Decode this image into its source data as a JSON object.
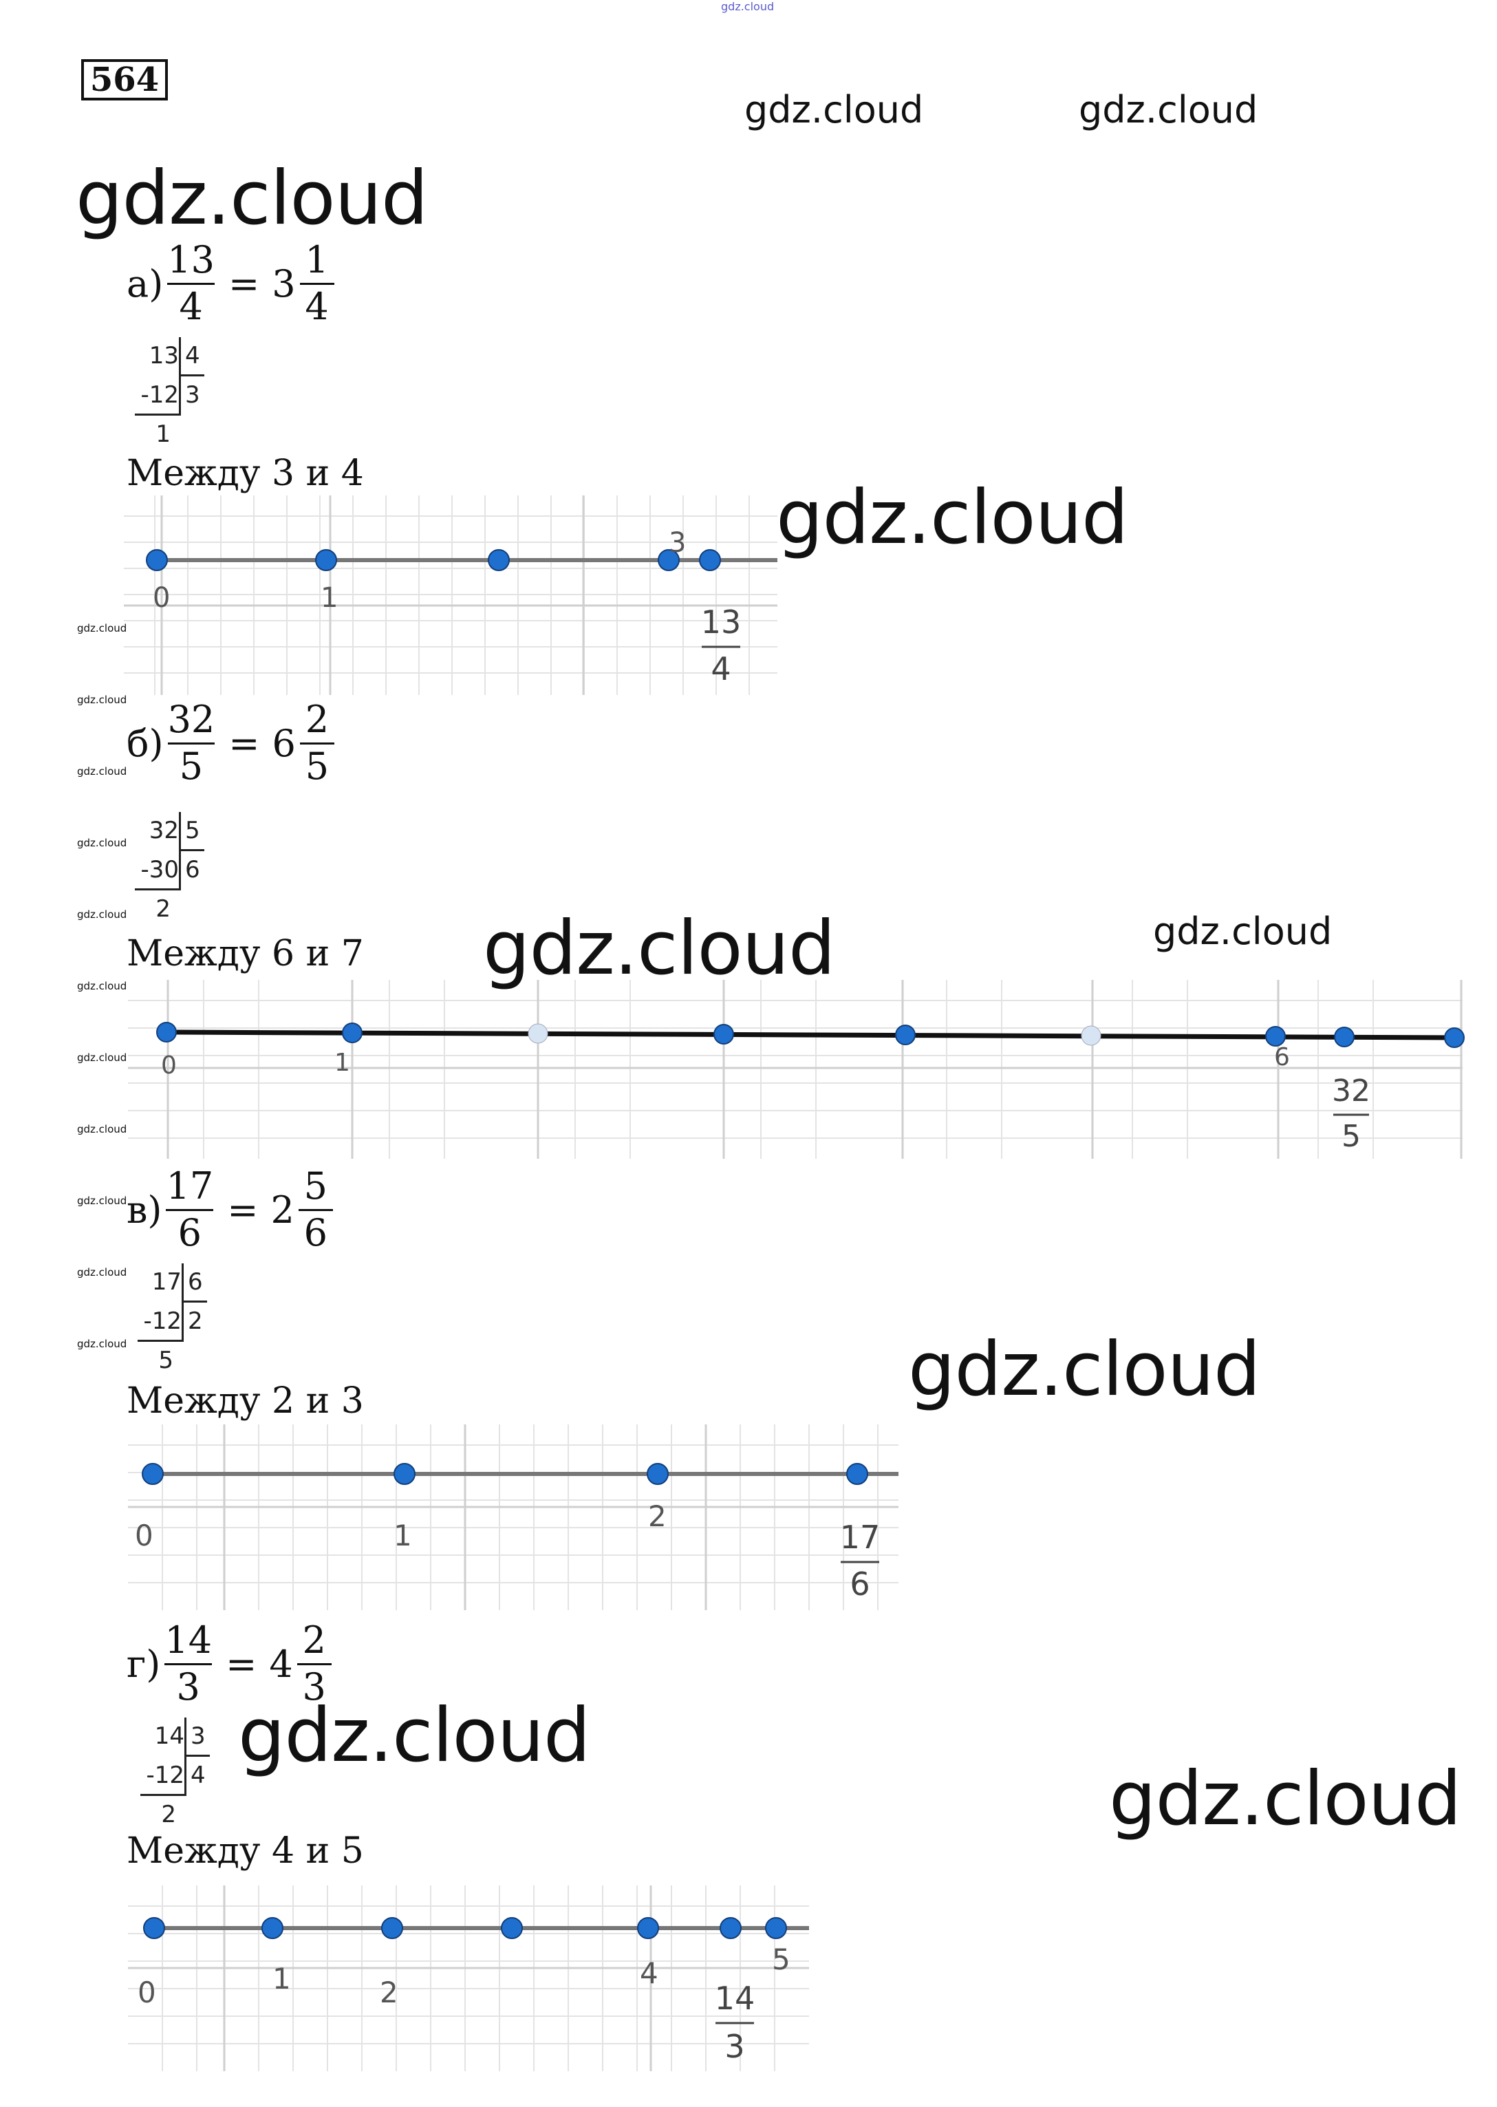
{
  "problem_number": "564",
  "watermark": "gdz.cloud",
  "parts": [
    {
      "letter": "а)",
      "num": "13",
      "den": "4",
      "eq": "=",
      "whole": "3",
      "fnum": "1",
      "fden": "4",
      "division": {
        "dividend": "13",
        "divisor": "4",
        "subtrahend": "-12",
        "quotient": "3",
        "remainder": "1"
      },
      "between": "Между 3 и 4",
      "line": {
        "tick_labels": [
          "0",
          "1",
          "3"
        ],
        "frac_num": "13",
        "frac_den": "4"
      }
    },
    {
      "letter": "б)",
      "num": "32",
      "den": "5",
      "eq": "=",
      "whole": "6",
      "fnum": "2",
      "fden": "5",
      "division": {
        "dividend": "32",
        "divisor": "5",
        "subtrahend": "-30",
        "quotient": "6",
        "remainder": "2"
      },
      "between": "Между 6 и 7",
      "line": {
        "tick_labels": [
          "0",
          "1",
          "6"
        ],
        "frac_num": "32",
        "frac_den": "5"
      }
    },
    {
      "letter": "в)",
      "num": "17",
      "den": "6",
      "eq": "=",
      "whole": "2",
      "fnum": "5",
      "fden": "6",
      "division": {
        "dividend": "17",
        "divisor": "6",
        "subtrahend": "-12",
        "quotient": "2",
        "remainder": "5"
      },
      "between": "Между 2 и 3",
      "line": {
        "tick_labels": [
          "0",
          "1",
          "2"
        ],
        "frac_num": "17",
        "frac_den": "6"
      }
    },
    {
      "letter": "г)",
      "num": "14",
      "den": "3",
      "eq": "=",
      "whole": "4",
      "fnum": "2",
      "fden": "3",
      "division": {
        "dividend": "14",
        "divisor": "3",
        "subtrahend": "-12",
        "quotient": "4",
        "remainder": "2"
      },
      "between": "Между 4 и 5",
      "line": {
        "tick_labels": [
          "0",
          "1",
          "2",
          "4",
          "5"
        ],
        "frac_num": "14",
        "frac_den": "3"
      }
    }
  ]
}
